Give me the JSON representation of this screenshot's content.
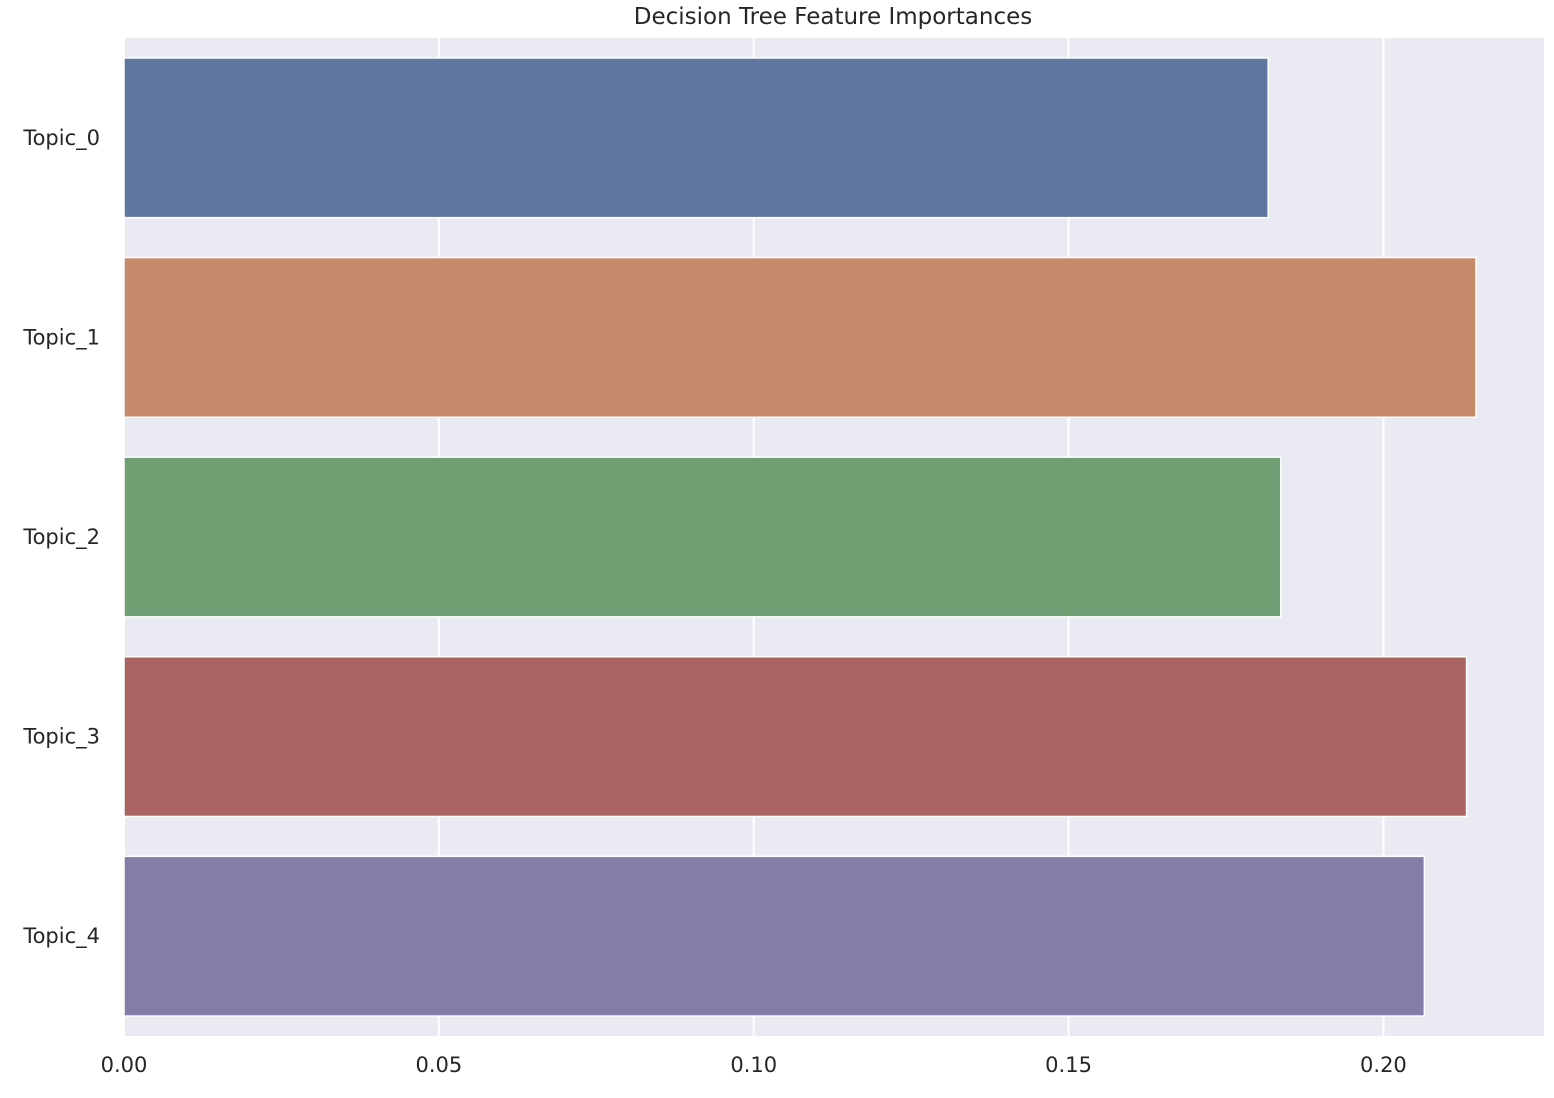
{
  "chart_data": {
    "type": "bar",
    "orientation": "horizontal",
    "title": "Decision Tree Feature Importances",
    "xlabel": "",
    "ylabel": "",
    "categories": [
      "Topic_0",
      "Topic_1",
      "Topic_2",
      "Topic_3",
      "Topic_4"
    ],
    "values": [
      0.1817,
      0.2147,
      0.1837,
      0.2132,
      0.2065
    ],
    "xlim": [
      0,
      0.2255
    ],
    "xticks": [
      0.0,
      0.05,
      0.1,
      0.15,
      0.2
    ],
    "xtick_labels": [
      "0.00",
      "0.05",
      "0.10",
      "0.15",
      "0.20"
    ],
    "grid": true,
    "legend": "none",
    "colors": [
      "#5f77a0",
      "#c48a6a",
      "#6e9e72",
      "#aa6363",
      "#847da7"
    ],
    "background": "#eaeaf2"
  }
}
